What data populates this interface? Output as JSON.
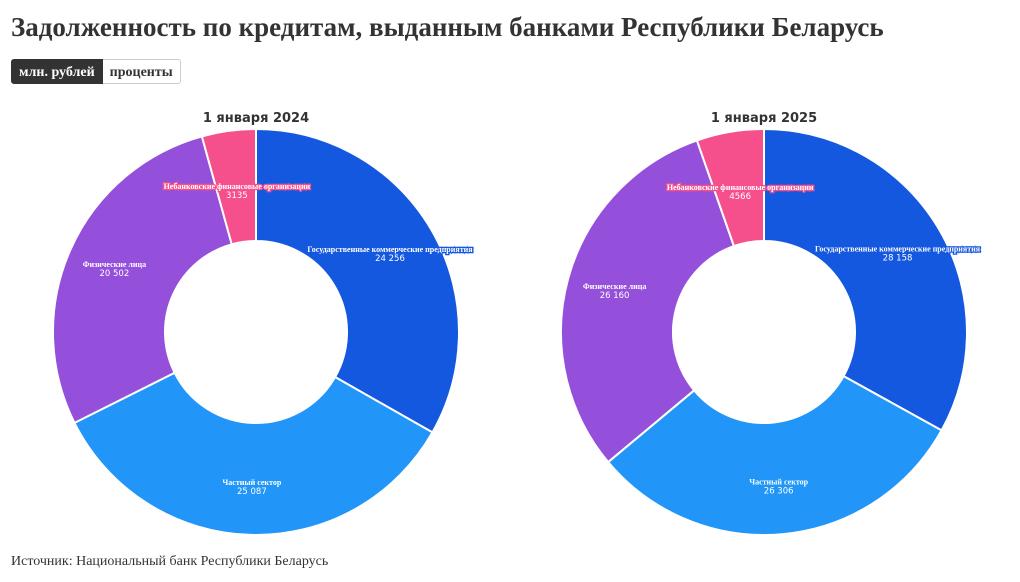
{
  "page": {
    "title": "Задолженность по кредитам, выданным банками Республики Беларусь",
    "toggle": [
      {
        "label": "млн. рублей",
        "active": true
      },
      {
        "label": "проценты",
        "active": false
      }
    ],
    "source": "Источник: Национальный банк Республики Беларусь"
  },
  "colors": {
    "state": "#1558E0",
    "private": "#2196F8",
    "individuals": "#9450DA",
    "nonbank": "#F5508C"
  },
  "chart_data": [
    {
      "type": "pie",
      "donut": true,
      "title": "1 января 2024",
      "slices": [
        {
          "label": "Государственные коммерческие предприятия",
          "display": "24 256",
          "value": 24256,
          "color": "#1558E0"
        },
        {
          "label": "Частный сектор",
          "display": "25 087",
          "value": 25087,
          "color": "#2196F8"
        },
        {
          "label": "Физические лица",
          "display": "20 502",
          "value": 20502,
          "color": "#9450DA"
        },
        {
          "label": "Небанковские финансовые организации",
          "display": "3135",
          "value": 3135,
          "color": "#F5508C"
        }
      ]
    },
    {
      "type": "pie",
      "donut": true,
      "title": "1 января 2025",
      "slices": [
        {
          "label": "Государственные коммерческие предприятия",
          "display": "28 158",
          "value": 28158,
          "color": "#1558E0"
        },
        {
          "label": "Частный сектор",
          "display": "26 306",
          "value": 26306,
          "color": "#2196F8"
        },
        {
          "label": "Физические лица",
          "display": "26 160",
          "value": 26160,
          "color": "#9450DA"
        },
        {
          "label": "Небанковские финансовые организации",
          "display": "4566",
          "value": 4566,
          "color": "#F5508C"
        }
      ]
    }
  ]
}
